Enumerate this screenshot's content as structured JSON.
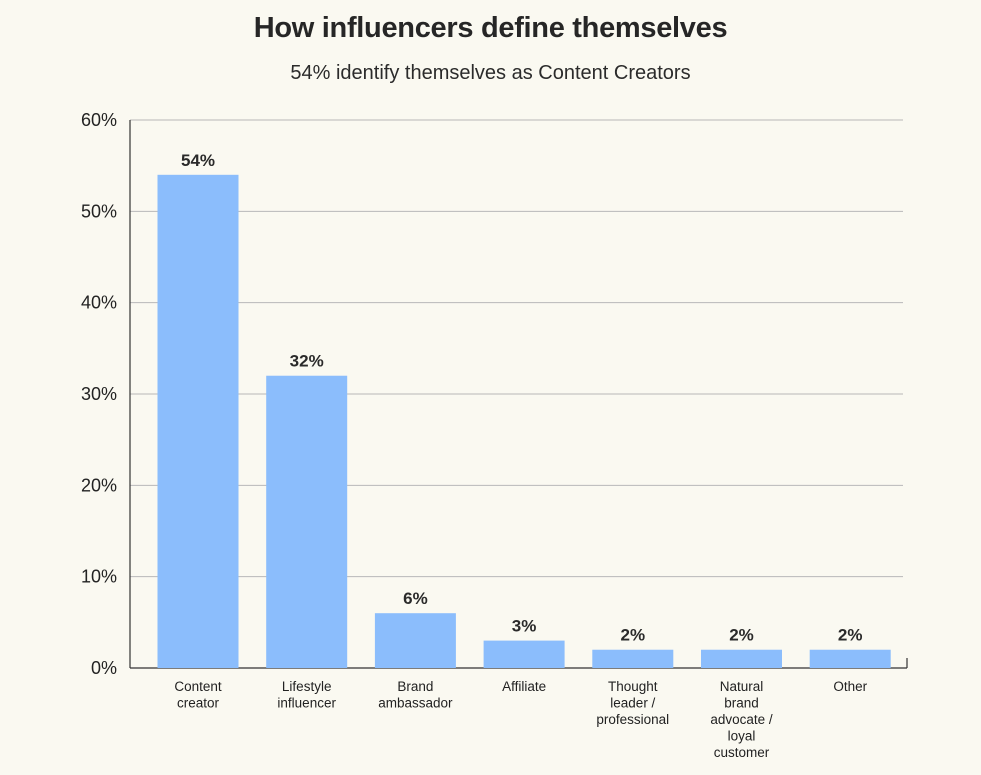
{
  "chart_data": {
    "type": "bar",
    "title": "How influencers define themselves",
    "subtitle": "54% identify themselves as Content Creators",
    "xlabel": "",
    "ylabel": "",
    "categories": [
      "Content creator",
      "Lifestyle influencer",
      "Brand ambassador",
      "Affiliate",
      "Thought leader / professional",
      "Natural brand advocate / loyal customer",
      "Other"
    ],
    "category_label_lines": [
      [
        "Content",
        "creator"
      ],
      [
        "Lifestyle",
        "influencer"
      ],
      [
        "Brand",
        "ambassador"
      ],
      [
        "Affiliate"
      ],
      [
        "Thought",
        "leader /",
        "professional"
      ],
      [
        "Natural",
        "brand",
        "advocate /",
        "loyal",
        "customer"
      ],
      [
        "Other"
      ]
    ],
    "values": [
      54,
      32,
      6,
      3,
      2,
      2,
      2
    ],
    "data_labels": [
      "54%",
      "32%",
      "6%",
      "3%",
      "2%",
      "2%",
      "2%"
    ],
    "ylim": [
      0,
      60
    ],
    "yticks": [
      0,
      10,
      20,
      30,
      40,
      50,
      60
    ],
    "ytick_labels": [
      "0%",
      "10%",
      "20%",
      "30%",
      "40%",
      "50%",
      "60%"
    ],
    "grid": true,
    "legend": "none",
    "colors": {
      "bar": "#8bbdfc",
      "grid": "#b8b8b8",
      "axis": "#333333",
      "background": "#faf9f1"
    }
  }
}
